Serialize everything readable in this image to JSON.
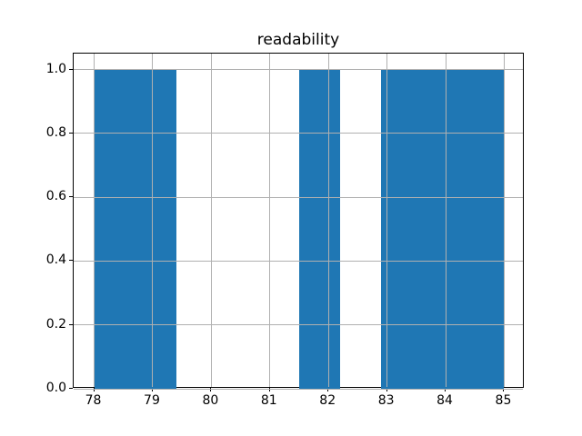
{
  "chart_data": {
    "type": "bar",
    "variant": "histogram",
    "title": "readability",
    "xlabel": "",
    "ylabel": "",
    "bin_edges": [
      78.0,
      78.7,
      79.4,
      80.1,
      80.8,
      81.5,
      82.2,
      82.9,
      83.6,
      84.3,
      85.0
    ],
    "counts": [
      1,
      1,
      0,
      0,
      0,
      1,
      0,
      1,
      1,
      1
    ],
    "x_ticks": [
      78,
      79,
      80,
      81,
      82,
      83,
      84,
      85
    ],
    "x_tick_labels": [
      "78",
      "79",
      "80",
      "81",
      "82",
      "83",
      "84",
      "85"
    ],
    "y_tick_values": [
      0.0,
      0.2,
      0.4,
      0.6,
      0.8,
      1.0
    ],
    "y_tick_labels": [
      "0.0",
      "0.2",
      "0.4",
      "0.6",
      "0.8",
      "1.0"
    ],
    "xlim": [
      77.65,
      85.35
    ],
    "ylim": [
      0,
      1.05
    ],
    "grid": true,
    "legend": false,
    "bar_color": "#1f77b4",
    "grid_color": "#b0b0b0",
    "spine_color": "#000000",
    "background_color": "#ffffff"
  }
}
